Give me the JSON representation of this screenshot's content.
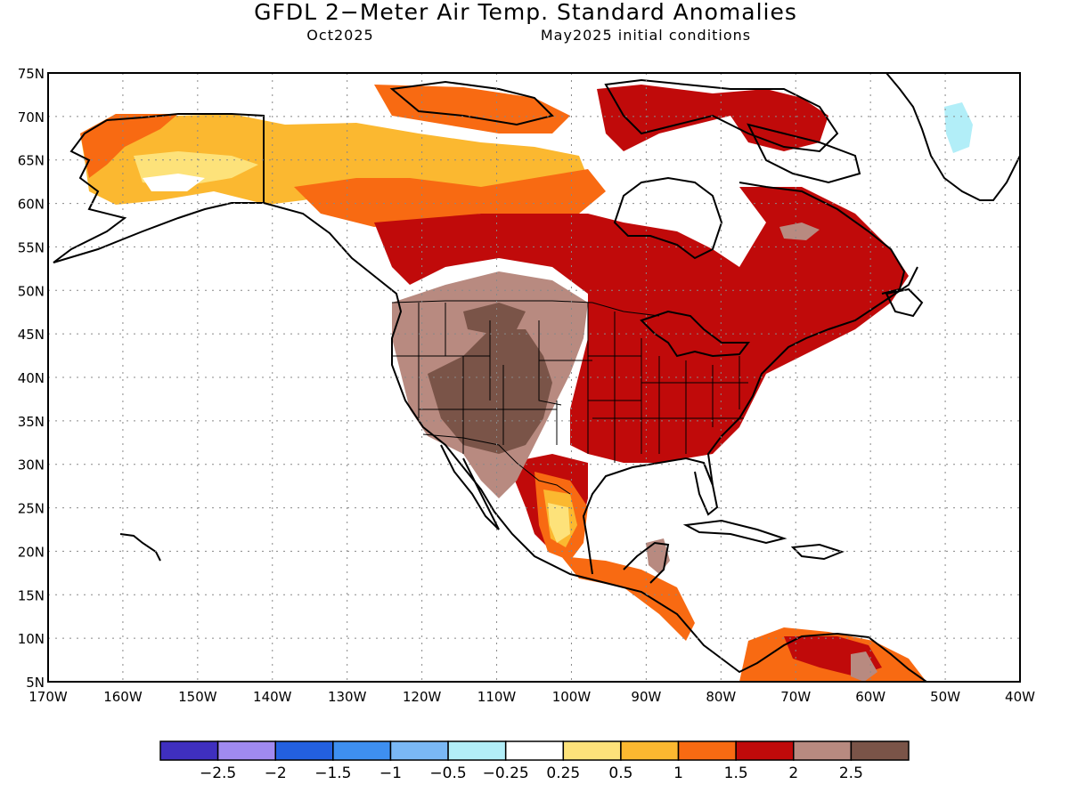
{
  "header": {
    "title": "GFDL 2−Meter Air Temp. Standard Anomalies",
    "target_month": "Oct2025",
    "initial_conditions": "May2025 initial conditions"
  },
  "map": {
    "lat_labels": [
      "75N",
      "70N",
      "65N",
      "60N",
      "55N",
      "50N",
      "45N",
      "40N",
      "35N",
      "30N",
      "25N",
      "20N",
      "15N",
      "10N",
      "5N"
    ],
    "lon_labels": [
      "170W",
      "160W",
      "150W",
      "140W",
      "130W",
      "120W",
      "110W",
      "100W",
      "90W",
      "80W",
      "70W",
      "60W",
      "50W",
      "40W"
    ],
    "lat_range": [
      5,
      75
    ],
    "lon_range": [
      -170,
      -40
    ],
    "gridlines": "dotted"
  },
  "colorbar": {
    "labels": [
      "−2.5",
      "−2",
      "−1.5",
      "−1",
      "−0.5",
      "−0.25",
      "0.25",
      "0.5",
      "1",
      "1.5",
      "2",
      "2.5"
    ],
    "colors": [
      "#3f2fbf",
      "#a08af0",
      "#2360e0",
      "#3e8ff0",
      "#7ab8f5",
      "#b2eef8",
      "#ffffff",
      "#fde27a",
      "#fbb830",
      "#f86a12",
      "#c00a0a",
      "#b88a80",
      "#7a5448"
    ]
  }
}
